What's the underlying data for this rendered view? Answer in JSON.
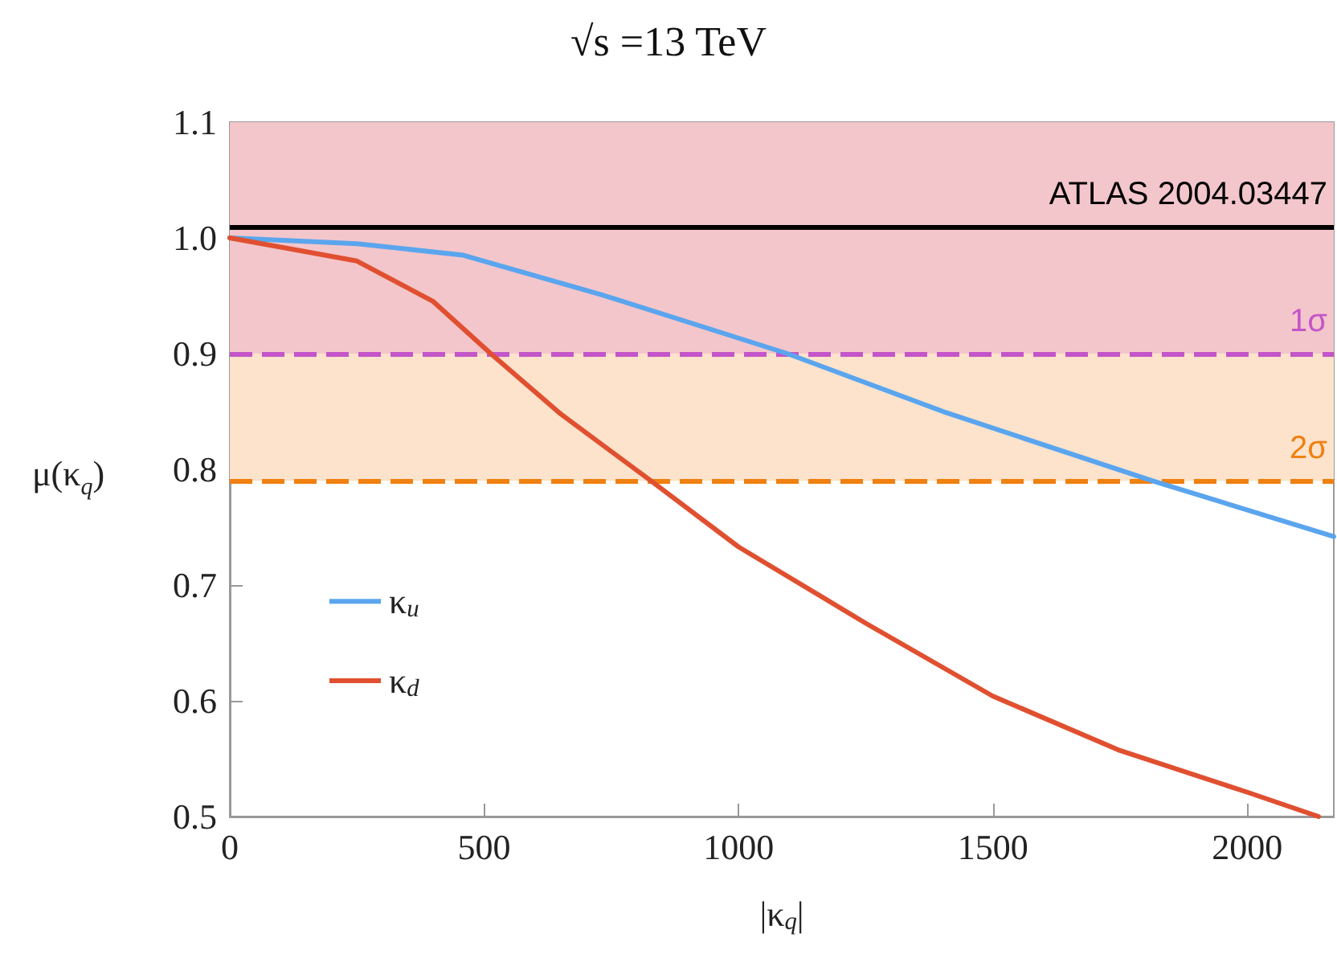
{
  "chart_data": {
    "type": "line",
    "title": "√s =13 TeV",
    "xlabel": "|κ$_{q}$|",
    "ylabel": "μ(κ$_{q}$)",
    "xlim": [
      0,
      2170
    ],
    "xticks": [
      0,
      500,
      1000,
      1500,
      2000
    ],
    "ylim": [
      0.5,
      1.1
    ],
    "yticks": [
      {
        "value": 0.5,
        "label": "0.5"
      },
      {
        "value": 0.6,
        "label": "0.6"
      },
      {
        "value": 0.7,
        "label": "0.7"
      },
      {
        "value": 0.8,
        "label": "0.8"
      },
      {
        "value": 0.9,
        "label": "0.9"
      },
      {
        "value": 1.0,
        "label": "1.0"
      },
      {
        "value": 1.1,
        "label": "1.1"
      }
    ],
    "grid": false,
    "legend": "bottom left",
    "line_style": "solid",
    "marker": "none",
    "series": [
      {
        "name": "κ$_{u}$",
        "color": "#5aa5ee",
        "x": [
          0,
          250,
          459,
          730,
          1096,
          1408,
          1814,
          2170
        ],
        "values": [
          1.0,
          0.995,
          0.985,
          0.951,
          0.9,
          0.849,
          0.79,
          0.742
        ]
      },
      {
        "name": "κ$_{d}$",
        "color": "#e05030",
        "x": [
          0,
          250,
          400,
          513,
          650,
          828,
          1000,
          1250,
          1500,
          1750,
          2000,
          2140
        ],
        "values": [
          1.0,
          0.98,
          0.945,
          0.9,
          0.848,
          0.79,
          0.733,
          0.667,
          0.604,
          0.557,
          0.521,
          0.5
        ]
      }
    ],
    "bands": [
      {
        "axis": "y",
        "from": 0.9,
        "to": 1.1,
        "color": "#f3c6cb"
      },
      {
        "axis": "y",
        "from": 0.79,
        "to": 0.9,
        "color": "#fde3cc"
      }
    ],
    "ref_lines": [
      {
        "axis": "y",
        "value": 1.01,
        "label": "ATLAS 2004.03447",
        "color": "#000000",
        "line_style": "solid"
      },
      {
        "axis": "y",
        "value": 0.9,
        "label": "1σ",
        "color": "#c455c9",
        "line_style": "dashed"
      },
      {
        "axis": "y",
        "value": 0.79,
        "label": "2σ",
        "color": "#f08010",
        "line_style": "dashed"
      }
    ]
  }
}
